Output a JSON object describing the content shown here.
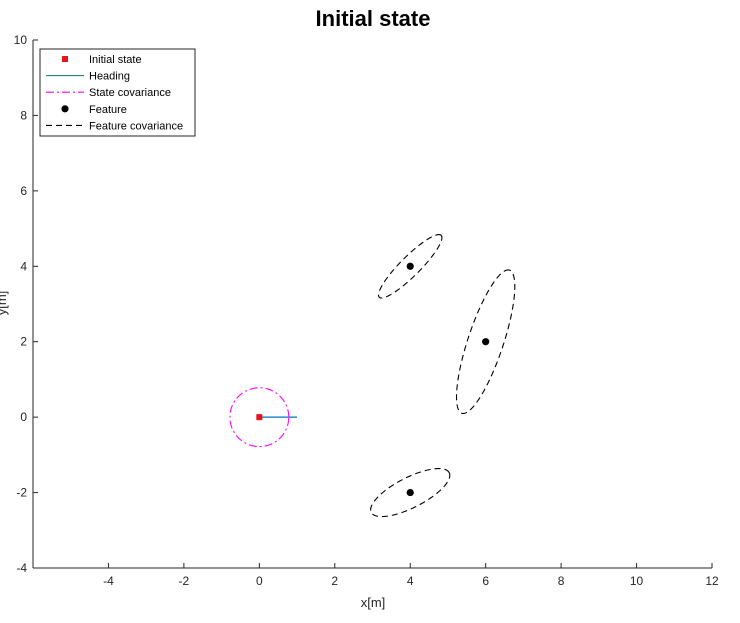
{
  "chart_data": {
    "type": "scatter",
    "title": "Initial state",
    "xlabel": "x[m]",
    "ylabel": "y[m]",
    "xlim": [
      -6,
      12
    ],
    "ylim": [
      -4,
      10
    ],
    "xticks": [
      -4,
      -2,
      0,
      2,
      4,
      6,
      8,
      10,
      12
    ],
    "yticks": [
      -4,
      -2,
      0,
      2,
      4,
      6,
      8,
      10
    ],
    "grid": false,
    "legend": {
      "placement": "top-left",
      "entries": [
        "Initial state",
        "Heading",
        "State covariance",
        "Feature",
        "Feature covariance"
      ]
    },
    "series": [
      {
        "name": "Initial state",
        "marker": "square",
        "color": "#e8141b",
        "points": [
          [
            0,
            0
          ]
        ]
      },
      {
        "name": "Heading",
        "style": "solid",
        "color": "#0072bd",
        "legend_color": "#1a8a7a",
        "x": [
          0,
          1
        ],
        "y": [
          0,
          0
        ]
      },
      {
        "name": "State covariance",
        "style": "dash-dot",
        "color": "#ff00ff",
        "ellipses": [
          {
            "center": [
              0,
              0
            ],
            "a": 0.78,
            "b": 0.78,
            "angle_deg": 0
          }
        ]
      },
      {
        "name": "Feature",
        "marker": "circle",
        "color": "#000000",
        "points": [
          [
            4,
            4
          ],
          [
            6,
            2
          ],
          [
            4,
            -2
          ]
        ]
      },
      {
        "name": "Feature covariance",
        "style": "dashed",
        "color": "#000000",
        "ellipses": [
          {
            "center": [
              4,
              4
            ],
            "a": 1.16,
            "b": 0.26,
            "angle_deg": 45
          },
          {
            "center": [
              6,
              2
            ],
            "a": 2.0,
            "b": 0.47,
            "angle_deg": 71.6
          },
          {
            "center": [
              4,
              -2
            ],
            "a": 1.16,
            "b": 0.4,
            "angle_deg": 27
          }
        ]
      }
    ]
  }
}
